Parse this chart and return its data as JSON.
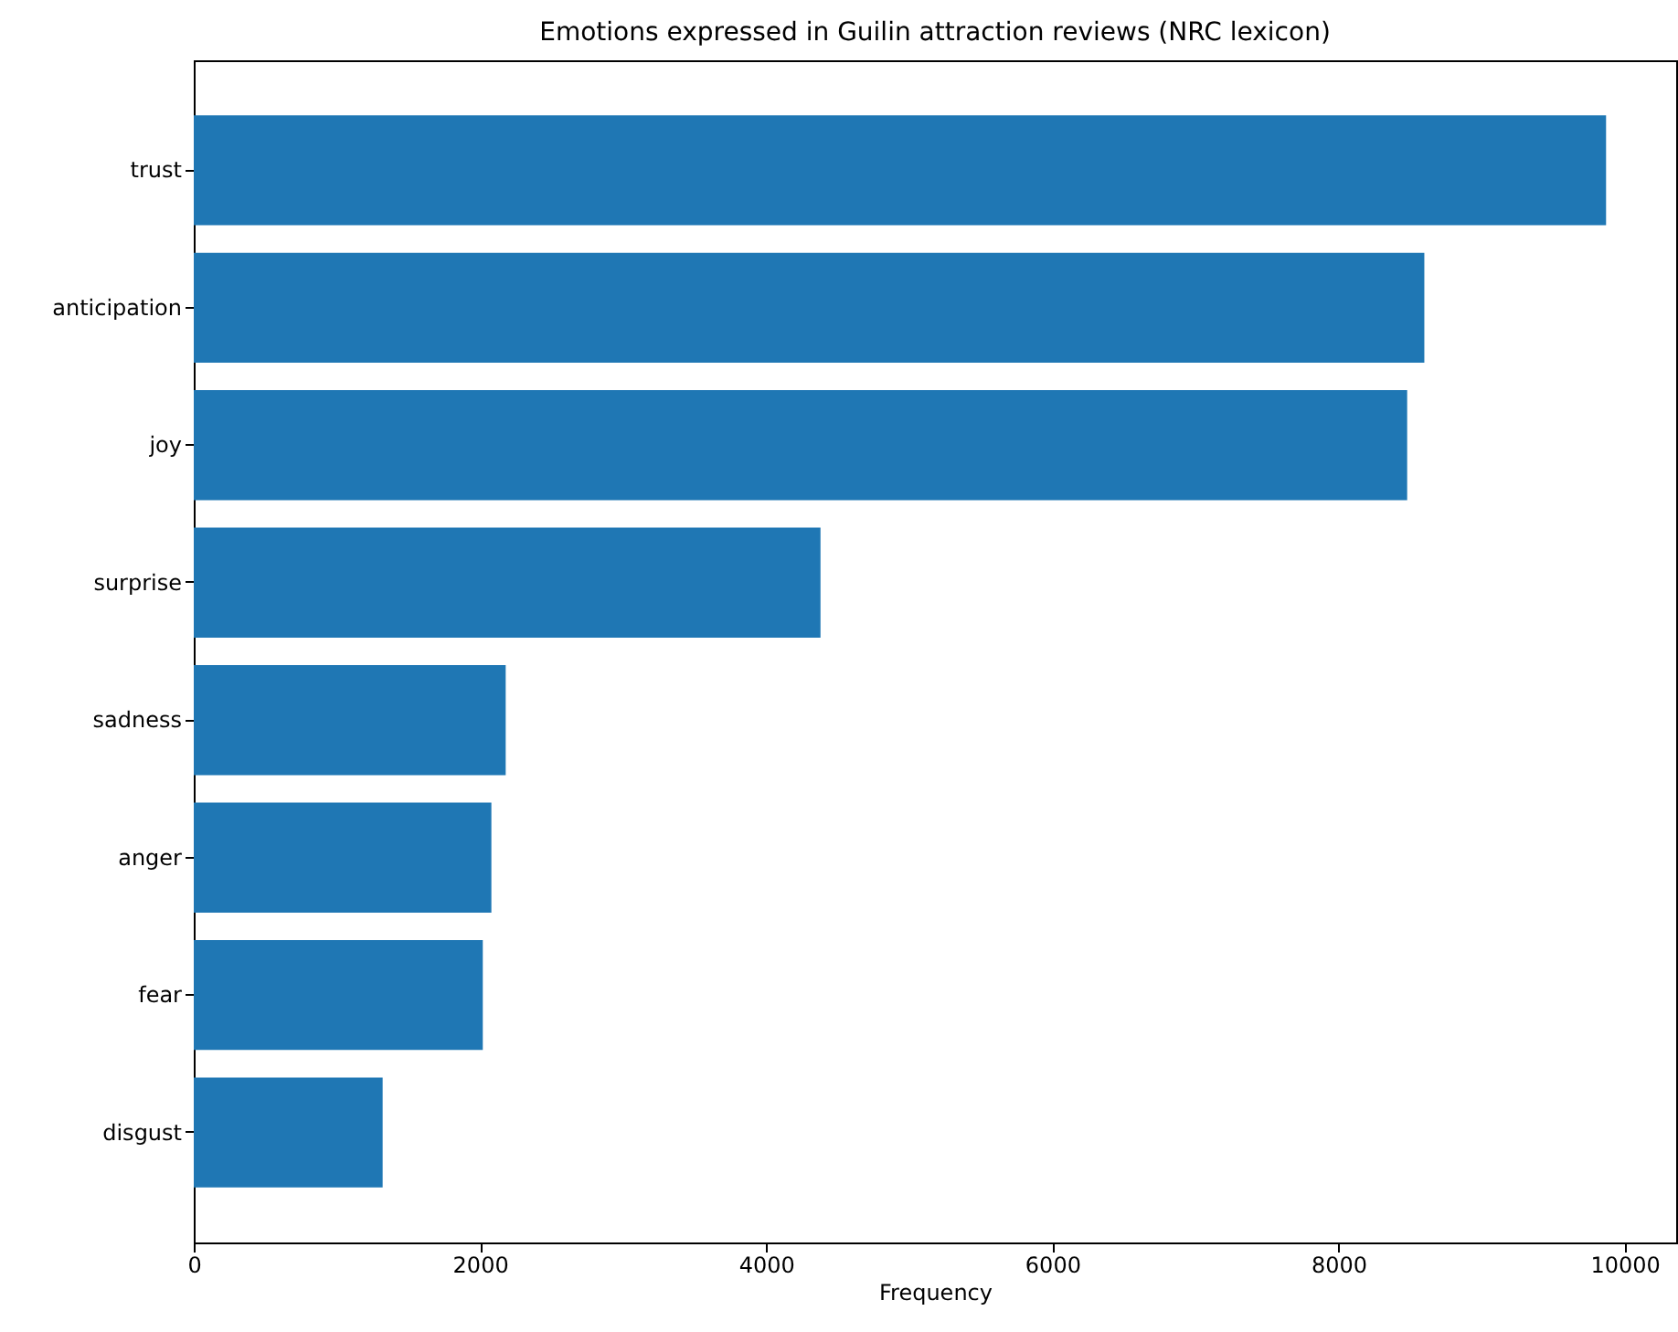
{
  "chart_data": {
    "type": "bar",
    "orientation": "horizontal",
    "title": "Emotions expressed in Guilin attraction reviews (NRC lexicon)",
    "xlabel": "Frequency",
    "categories": [
      "trust",
      "anticipation",
      "joy",
      "surprise",
      "sadness",
      "anger",
      "fear",
      "disgust"
    ],
    "values": [
      9870,
      8600,
      8480,
      4380,
      2180,
      2080,
      2020,
      1320
    ],
    "color": "#1f77b4",
    "xlim": [
      0,
      10360
    ],
    "xticks": [
      0,
      2000,
      4000,
      6000,
      8000,
      10000
    ],
    "grid": false
  }
}
